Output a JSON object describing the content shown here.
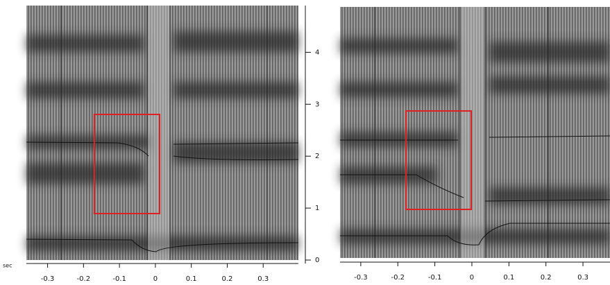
{
  "chart_data": [
    {
      "type": "spectrogram",
      "x_label": "sec",
      "xlim": [
        -0.359,
        0.398
      ],
      "xticks": [
        -0.3,
        -0.2,
        -0.1,
        0,
        0.1,
        0.2,
        0.3
      ],
      "ylim": [
        0,
        4.9
      ],
      "yticks": [
        0,
        1,
        2,
        3,
        4
      ]
    },
    {
      "type": "spectrogram",
      "xlim": [
        -0.356,
        0.373
      ],
      "xticks": [
        -0.3,
        -0.2,
        -0.1,
        0,
        0.1,
        0.2,
        0.3
      ]
    }
  ]
}
